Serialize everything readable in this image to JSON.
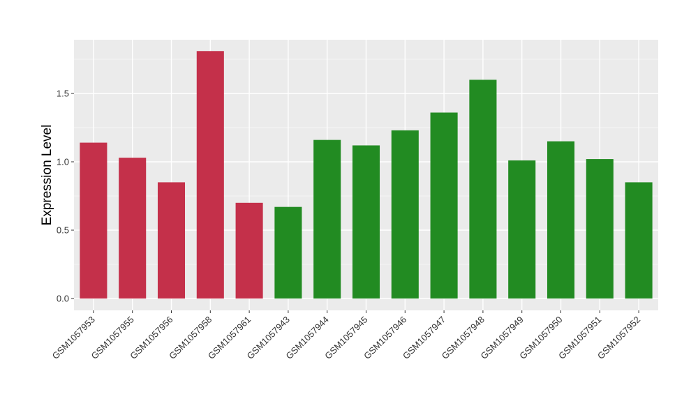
{
  "chart_data": {
    "type": "bar",
    "title": "",
    "xlabel": "",
    "ylabel": "Expression Level",
    "ylim": [
      -0.08,
      1.9
    ],
    "yticks": [
      0.0,
      0.5,
      1.0,
      1.5
    ],
    "ytick_labels": [
      "0.0",
      "0.5",
      "1.0",
      "1.5"
    ],
    "grid": true,
    "legend": "none",
    "categories": [
      "GSM1057953",
      "GSM1057955",
      "GSM1057956",
      "GSM1057958",
      "GSM1057961",
      "GSM1057943",
      "GSM1057944",
      "GSM1057945",
      "GSM1057946",
      "GSM1057947",
      "GSM1057948",
      "GSM1057949",
      "GSM1057950",
      "GSM1057951",
      "GSM1057952"
    ],
    "values": [
      1.14,
      1.03,
      0.85,
      1.81,
      0.7,
      0.67,
      1.16,
      1.12,
      1.23,
      1.36,
      1.6,
      1.01,
      1.15,
      1.02,
      0.85
    ],
    "groups": [
      "A",
      "A",
      "A",
      "A",
      "A",
      "B",
      "B",
      "B",
      "B",
      "B",
      "B",
      "B",
      "B",
      "B",
      "B"
    ],
    "colors": {
      "A": "#c4304a",
      "B": "#228b22",
      "panel": "#ebebeb",
      "grid_major": "#ffffff",
      "grid_minor": "#f5f5f5"
    }
  }
}
